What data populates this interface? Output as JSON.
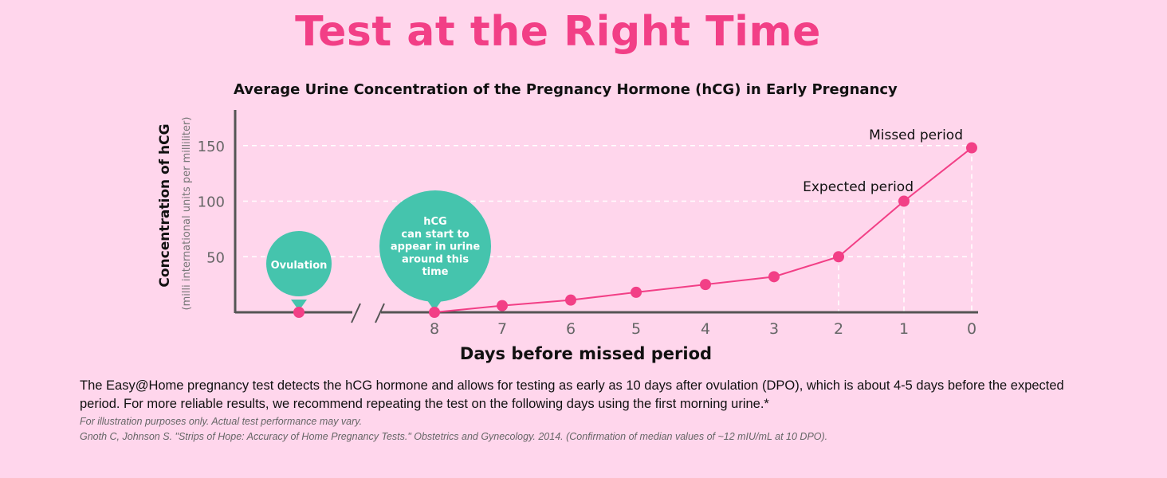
{
  "page": {
    "title": "Test at the Right Time",
    "description": "The Easy@Home pregnancy test detects the hCG hormone and allows for testing as early as 10 days after ovulation (DPO), which is about 4-5 days before the expected period. For more reliable results, we recommend repeating the test on the following days using the first morning urine.*",
    "note": "For illustration purposes only. Actual test performance may vary.",
    "citation": "Gnoth C, Johnson S. \"Strips of Hope: Accuracy of Home Pregnancy Tests.\" Obstetrics and Gynecology. 2014. (Confirmation of median values of ~12 mIU/mL at 10 DPO)."
  },
  "chart_data": {
    "type": "line",
    "title": "Average Urine Concentration of the Pregnancy Hormone (hCG) in Early Pregnancy",
    "xlabel": "Days before missed period",
    "ylabel": "Concentration of hCG",
    "ylabel_sub": "(milli international units per milliliter)",
    "categories": [
      "8",
      "7",
      "6",
      "5",
      "4",
      "3",
      "2",
      "1",
      "0"
    ],
    "values": [
      0,
      6,
      11,
      18,
      25,
      32,
      50,
      100,
      148
    ],
    "ylim": [
      0,
      180
    ],
    "yticks": [
      50,
      100,
      150
    ],
    "grid": true,
    "ovulation_value": 0,
    "annotations": {
      "ovulation": "Ovulation",
      "hcg_lines": [
        "hCG",
        "can start to",
        "appear in urine",
        "around this",
        "time"
      ],
      "expected_period": "Expected period",
      "missed_period": "Missed period"
    },
    "colors": {
      "line": "#f23f86",
      "bubble": "#45c4ad",
      "axis": "#555555",
      "grid": "#ffffff",
      "title": "#f23f86"
    }
  }
}
